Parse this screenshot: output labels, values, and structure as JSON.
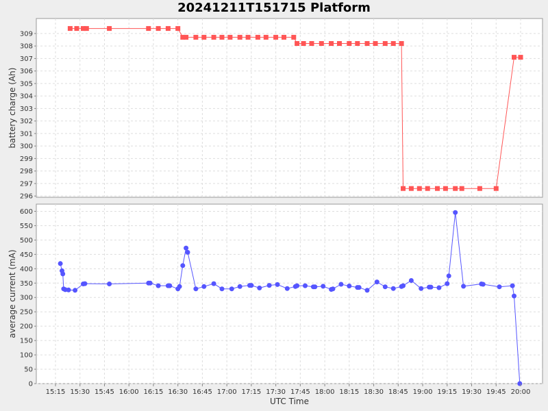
{
  "chart_title": "20241211T151715 Platform",
  "chart_data": [
    {
      "type": "line",
      "ylabel": "battery charge (Ah)",
      "ylim": [
        295.9,
        310.2
      ],
      "yticks": [
        296,
        297,
        298,
        299,
        300,
        301,
        302,
        303,
        304,
        305,
        306,
        307,
        308,
        309
      ],
      "grid": true,
      "series": [
        {
          "color": "#ff5555",
          "marker": "square",
          "x": [
            "15:24",
            "15:28",
            "15:32",
            "15:34",
            "15:48",
            "16:12",
            "16:18",
            "16:24",
            "16:30",
            "16:33",
            "16:35",
            "16:41",
            "16:46",
            "16:52",
            "16:57",
            "17:02",
            "17:08",
            "17:13",
            "17:19",
            "17:24",
            "17:30",
            "17:35",
            "17:41",
            "17:43",
            "17:47",
            "17:52",
            "17:58",
            "18:04",
            "18:09",
            "18:15",
            "18:20",
            "18:26",
            "18:31",
            "18:37",
            "18:42",
            "18:47",
            "18:48",
            "18:53",
            "18:58",
            "19:03",
            "19:09",
            "19:14",
            "19:20",
            "19:24",
            "19:35",
            "19:45",
            "19:56",
            "20:00"
          ],
          "values": [
            309.4,
            309.4,
            309.4,
            309.4,
            309.4,
            309.4,
            309.4,
            309.4,
            309.4,
            308.7,
            308.7,
            308.7,
            308.7,
            308.7,
            308.7,
            308.7,
            308.7,
            308.7,
            308.7,
            308.7,
            308.7,
            308.7,
            308.7,
            308.2,
            308.2,
            308.2,
            308.2,
            308.2,
            308.2,
            308.2,
            308.2,
            308.2,
            308.2,
            308.2,
            308.2,
            308.2,
            296.6,
            296.6,
            296.6,
            296.6,
            296.6,
            296.6,
            296.6,
            296.6,
            296.6,
            296.6,
            307.1,
            307.1
          ]
        }
      ]
    },
    {
      "type": "line",
      "ylabel": "average current (mA)",
      "xlabel": "UTC Time",
      "ylim": [
        0,
        625
      ],
      "yticks": [
        0,
        50,
        100,
        150,
        200,
        250,
        300,
        350,
        400,
        450,
        500,
        550,
        600
      ],
      "xticks": [
        "15:15",
        "15:30",
        "15:45",
        "16:00",
        "16:15",
        "16:30",
        "16:45",
        "17:00",
        "17:15",
        "17:30",
        "17:45",
        "18:00",
        "18:15",
        "18:30",
        "18:45",
        "19:00",
        "19:15",
        "19:30",
        "19:45",
        "20:00"
      ],
      "grid": true,
      "series": [
        {
          "color": "#5555ff",
          "marker": "circle",
          "x": [
            "15:18",
            "15:19",
            "15:19.5",
            "15:20",
            "15:21",
            "15:23",
            "15:27",
            "15:32",
            "15:33",
            "15:48",
            "16:12",
            "16:13",
            "16:18",
            "16:24",
            "16:25",
            "16:30",
            "16:31",
            "16:33",
            "16:35",
            "16:36",
            "16:41",
            "16:46",
            "16:52",
            "16:57",
            "17:03",
            "17:08",
            "17:14",
            "17:15",
            "17:20",
            "17:26",
            "17:31",
            "17:37",
            "17:42",
            "17:43",
            "17:48",
            "17:53",
            "17:54",
            "17:59",
            "18:04",
            "18:05",
            "18:10",
            "18:15",
            "18:20",
            "18:21",
            "18:26",
            "18:32",
            "18:37",
            "18:42",
            "18:47",
            "18:48",
            "18:53",
            "18:59",
            "19:04",
            "19:05",
            "19:10",
            "19:15",
            "19:16",
            "19:20",
            "19:25",
            "19:36",
            "19:37",
            "19:47",
            "19:55",
            "19:56",
            "19:59.5"
          ],
          "values": [
            418,
            393,
            382,
            330,
            327,
            326,
            325,
            347,
            348,
            347,
            350,
            350,
            341,
            341,
            341,
            330,
            338,
            411,
            472,
            457,
            330,
            338,
            348,
            330,
            330,
            338,
            342,
            342,
            333,
            342,
            345,
            331,
            338,
            341,
            341,
            337,
            337,
            339,
            328,
            330,
            346,
            340,
            335,
            335,
            325,
            354,
            337,
            331,
            338,
            341,
            359,
            331,
            336,
            336,
            334,
            348,
            375,
            596,
            339,
            347,
            346,
            337,
            341,
            305,
            0
          ]
        }
      ]
    }
  ]
}
